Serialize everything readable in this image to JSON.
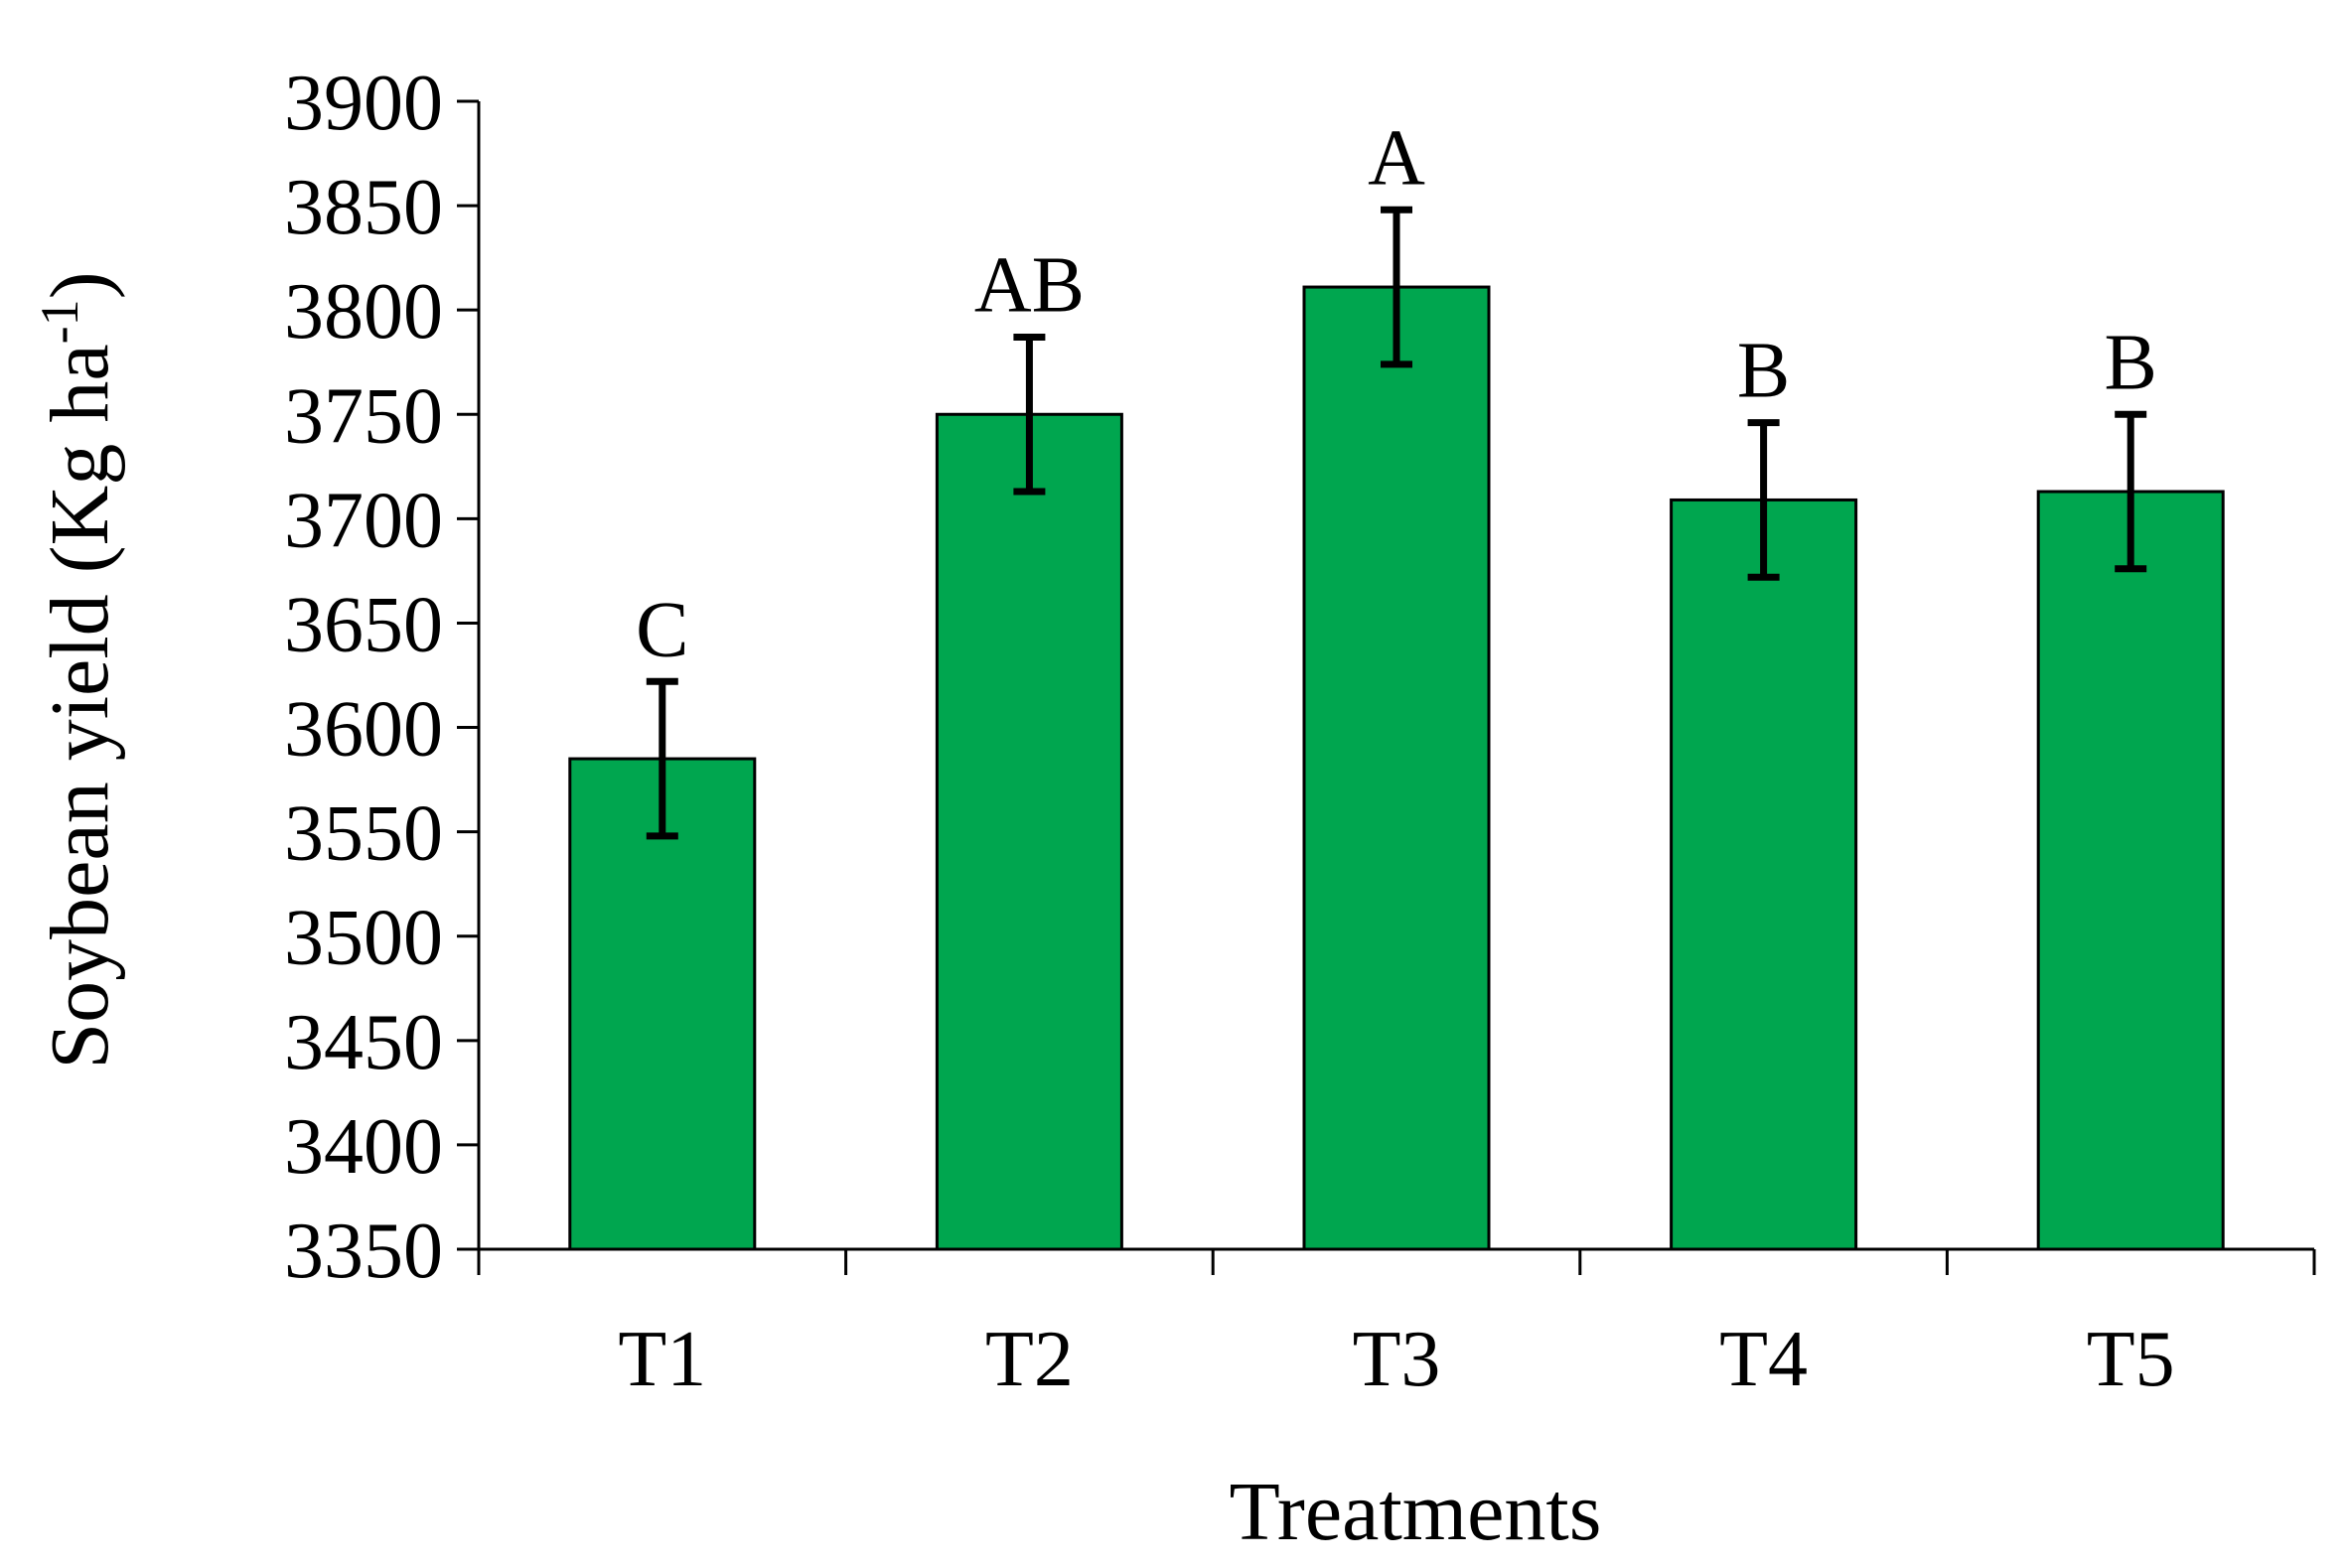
{
  "chart_data": {
    "type": "bar",
    "title": "",
    "xlabel": "Treatments",
    "ylabel": "Soybean yield (Kg ha",
    "ylabel_superscript": "-1",
    "ylabel_close": ")",
    "categories": [
      "T1",
      "T2",
      "T3",
      "T4",
      "T5"
    ],
    "values": [
      3585,
      3750,
      3811,
      3709,
      3713
    ],
    "errors": [
      37,
      37,
      37,
      37,
      37
    ],
    "significance": [
      "C",
      "AB",
      "A",
      "B",
      "B"
    ],
    "ylim": [
      3350,
      3900
    ],
    "yticks": [
      3350,
      3400,
      3450,
      3500,
      3550,
      3600,
      3650,
      3700,
      3750,
      3800,
      3850,
      3900
    ],
    "grid": false,
    "legend": "none",
    "bar_color": "#00a64f",
    "bar_edge_color": "#000000",
    "error_bar_color": "#000000"
  }
}
